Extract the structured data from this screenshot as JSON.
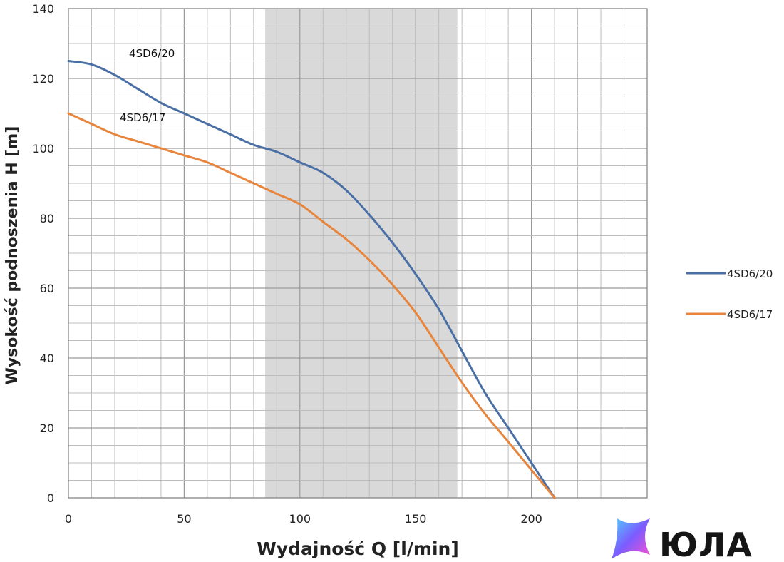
{
  "chart_data": {
    "type": "line",
    "xlabel": "Wydajność Q [l/min]",
    "ylabel": "Wysokość podnoszenia H [m]",
    "xlim": [
      0,
      250
    ],
    "ylim": [
      0,
      140
    ],
    "x_ticks": [
      "0",
      "50",
      "100",
      "150",
      "200"
    ],
    "y_ticks": [
      "0",
      "20",
      "40",
      "60",
      "80",
      "100",
      "120",
      "140"
    ],
    "grid": true,
    "legend_position": "right",
    "shaded_region": {
      "x_from": 85,
      "x_to": 168,
      "color": "#d9d9d9"
    },
    "series": [
      {
        "name": "4SD6/20",
        "color": "#4a6fa5",
        "x": [
          0,
          10,
          20,
          30,
          40,
          50,
          60,
          70,
          80,
          90,
          100,
          110,
          120,
          130,
          140,
          150,
          160,
          170,
          180,
          190,
          200,
          210
        ],
        "values": [
          125,
          124,
          121,
          117,
          113,
          110,
          107,
          104,
          101,
          99,
          96,
          93,
          88,
          81,
          73,
          64,
          54,
          42,
          30,
          20,
          10,
          0
        ]
      },
      {
        "name": "4SD6/17",
        "color": "#e8853d",
        "x": [
          0,
          10,
          20,
          30,
          40,
          50,
          60,
          70,
          80,
          90,
          100,
          110,
          120,
          130,
          140,
          150,
          160,
          170,
          180,
          190,
          200,
          210
        ],
        "values": [
          110,
          107,
          104,
          102,
          100,
          98,
          96,
          93,
          90,
          87,
          84,
          79,
          74,
          68,
          61,
          53,
          43,
          33,
          24,
          16,
          8,
          0
        ]
      }
    ],
    "annotations": [
      {
        "text": "4SD6/20",
        "x": 40,
        "y": 127
      },
      {
        "text": "4SD6/17",
        "x": 35,
        "y": 108
      }
    ]
  },
  "logo": {
    "text": "ЮЛА"
  }
}
